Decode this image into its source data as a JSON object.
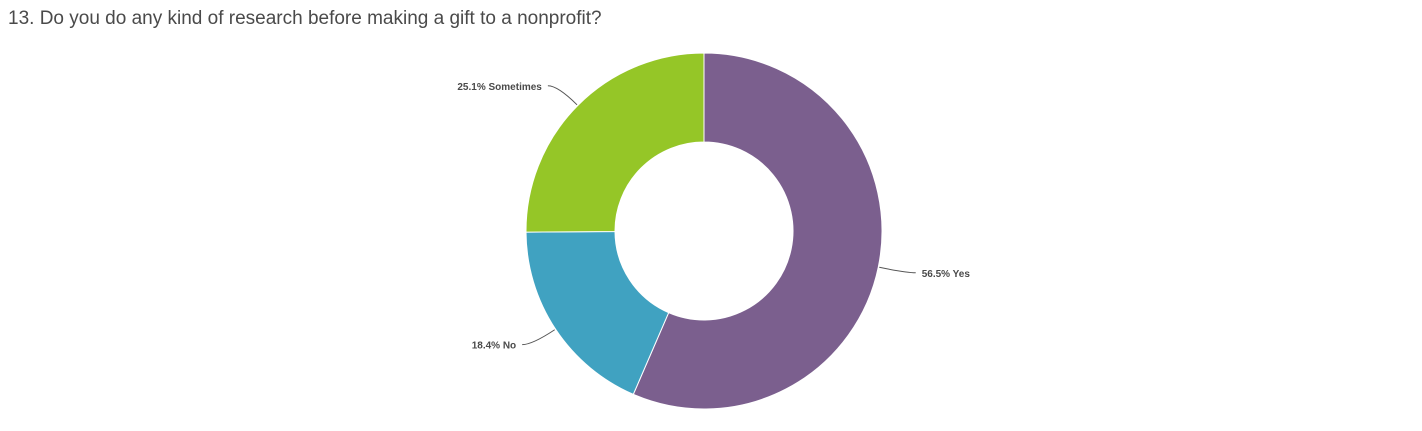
{
  "question": {
    "title": "13. Do you do any kind of research before making a gift to a nonprofit?"
  },
  "chart_data": {
    "type": "pie",
    "donut": true,
    "title": "13. Do you do any kind of research before making a gift to a nonprofit?",
    "slices": [
      {
        "label": "Yes",
        "value": 56.5,
        "display": "56.5% Yes",
        "color": "#7b5f8e"
      },
      {
        "label": "No",
        "value": 18.4,
        "display": "18.4% No",
        "color": "#40a2c1"
      },
      {
        "label": "Sometimes",
        "value": 25.1,
        "display": "25.1% Sometimes",
        "color": "#95c627"
      }
    ],
    "start": "top",
    "direction": "clockwise",
    "legend": "none"
  }
}
